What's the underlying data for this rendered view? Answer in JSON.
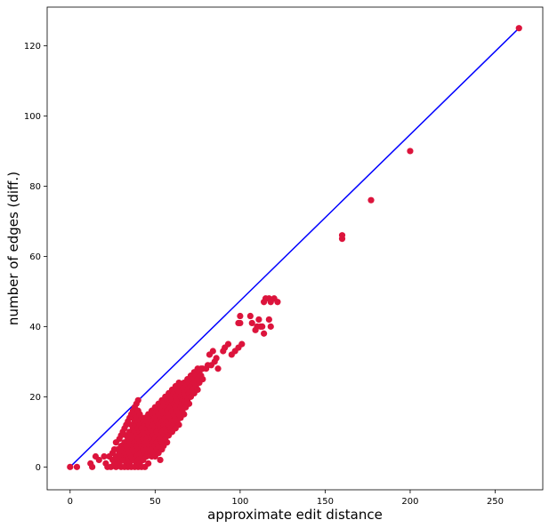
{
  "chart_data": {
    "type": "scatter",
    "title": "",
    "xlabel": "approximate edit distance",
    "ylabel": "number of edges (diff.)",
    "xlim": [
      -13.5,
      278
    ],
    "ylim": [
      -6.5,
      131
    ],
    "grid": false,
    "x_ticks": [
      0,
      50,
      100,
      150,
      200,
      250
    ],
    "y_ticks": [
      0,
      20,
      40,
      60,
      80,
      100,
      120
    ],
    "x_tick_labels": [
      "0",
      "50",
      "100",
      "150",
      "200",
      "250"
    ],
    "y_tick_labels": [
      "0",
      "20",
      "40",
      "60",
      "80",
      "100",
      "120"
    ],
    "colors": {
      "points": "#dc143c",
      "line": "#0000ff"
    },
    "line": {
      "x": [
        0,
        264
      ],
      "y": [
        0,
        125
      ]
    },
    "series": [
      {
        "points": [
          [
            0,
            0
          ],
          [
            4,
            0
          ],
          [
            12,
            1
          ],
          [
            13,
            0
          ],
          [
            15,
            3
          ],
          [
            17,
            2
          ],
          [
            20,
            3
          ],
          [
            21,
            1
          ],
          [
            22,
            0
          ],
          [
            23,
            3
          ],
          [
            24,
            0
          ],
          [
            25,
            2
          ],
          [
            25,
            4
          ],
          [
            26,
            1
          ],
          [
            26,
            5
          ],
          [
            27,
            0
          ],
          [
            27,
            3
          ],
          [
            27,
            7
          ],
          [
            28,
            2
          ],
          [
            28,
            5
          ],
          [
            29,
            1
          ],
          [
            29,
            4
          ],
          [
            29,
            8
          ],
          [
            30,
            0
          ],
          [
            30,
            3
          ],
          [
            30,
            6
          ],
          [
            30,
            9
          ],
          [
            31,
            2
          ],
          [
            31,
            5
          ],
          [
            31,
            10
          ],
          [
            32,
            0
          ],
          [
            32,
            4
          ],
          [
            32,
            7
          ],
          [
            32,
            11
          ],
          [
            33,
            1
          ],
          [
            33,
            3
          ],
          [
            33,
            6
          ],
          [
            33,
            9
          ],
          [
            33,
            12
          ],
          [
            34,
            0
          ],
          [
            34,
            2
          ],
          [
            34,
            5
          ],
          [
            34,
            8
          ],
          [
            34,
            13
          ],
          [
            35,
            1
          ],
          [
            35,
            4
          ],
          [
            35,
            7
          ],
          [
            35,
            10
          ],
          [
            35,
            14
          ],
          [
            36,
            0
          ],
          [
            36,
            3
          ],
          [
            36,
            6
          ],
          [
            36,
            9
          ],
          [
            36,
            12
          ],
          [
            36,
            15
          ],
          [
            37,
            2
          ],
          [
            37,
            5
          ],
          [
            37,
            8
          ],
          [
            37,
            11
          ],
          [
            37,
            14
          ],
          [
            37,
            16
          ],
          [
            38,
            0
          ],
          [
            38,
            4
          ],
          [
            38,
            7
          ],
          [
            38,
            10
          ],
          [
            38,
            13
          ],
          [
            38,
            15
          ],
          [
            38,
            17
          ],
          [
            39,
            1
          ],
          [
            39,
            3
          ],
          [
            39,
            6
          ],
          [
            39,
            9
          ],
          [
            39,
            12
          ],
          [
            39,
            14
          ],
          [
            39,
            18
          ],
          [
            40,
            0
          ],
          [
            40,
            2
          ],
          [
            40,
            5
          ],
          [
            40,
            8
          ],
          [
            40,
            11
          ],
          [
            40,
            13
          ],
          [
            40,
            16
          ],
          [
            40,
            19
          ],
          [
            41,
            1
          ],
          [
            41,
            4
          ],
          [
            41,
            7
          ],
          [
            41,
            10
          ],
          [
            41,
            12
          ],
          [
            41,
            15
          ],
          [
            42,
            0
          ],
          [
            42,
            3
          ],
          [
            42,
            6
          ],
          [
            42,
            9
          ],
          [
            42,
            11
          ],
          [
            42,
            14
          ],
          [
            43,
            2
          ],
          [
            43,
            5
          ],
          [
            43,
            8
          ],
          [
            43,
            10
          ],
          [
            43,
            13
          ],
          [
            44,
            0
          ],
          [
            44,
            4
          ],
          [
            44,
            7
          ],
          [
            44,
            9
          ],
          [
            44,
            12
          ],
          [
            44,
            14
          ],
          [
            45,
            3
          ],
          [
            45,
            6
          ],
          [
            45,
            8
          ],
          [
            45,
            11
          ],
          [
            45,
            13
          ],
          [
            46,
            1
          ],
          [
            46,
            5
          ],
          [
            46,
            7
          ],
          [
            46,
            10
          ],
          [
            46,
            12
          ],
          [
            46,
            15
          ],
          [
            47,
            4
          ],
          [
            47,
            6
          ],
          [
            47,
            9
          ],
          [
            47,
            11
          ],
          [
            47,
            14
          ],
          [
            48,
            3
          ],
          [
            48,
            5
          ],
          [
            48,
            8
          ],
          [
            48,
            10
          ],
          [
            48,
            13
          ],
          [
            48,
            16
          ],
          [
            49,
            4
          ],
          [
            49,
            7
          ],
          [
            49,
            9
          ],
          [
            49,
            12
          ],
          [
            49,
            15
          ],
          [
            50,
            3
          ],
          [
            50,
            6
          ],
          [
            50,
            8
          ],
          [
            50,
            11
          ],
          [
            50,
            14
          ],
          [
            50,
            17
          ],
          [
            51,
            5
          ],
          [
            51,
            7
          ],
          [
            51,
            10
          ],
          [
            51,
            13
          ],
          [
            51,
            16
          ],
          [
            52,
            4
          ],
          [
            52,
            6
          ],
          [
            52,
            9
          ],
          [
            52,
            12
          ],
          [
            52,
            15
          ],
          [
            52,
            18
          ],
          [
            53,
            2
          ],
          [
            53,
            8
          ],
          [
            53,
            11
          ],
          [
            53,
            14
          ],
          [
            53,
            17
          ],
          [
            54,
            5
          ],
          [
            54,
            7
          ],
          [
            54,
            10
          ],
          [
            54,
            13
          ],
          [
            54,
            16
          ],
          [
            54,
            19
          ],
          [
            55,
            6
          ],
          [
            55,
            9
          ],
          [
            55,
            12
          ],
          [
            55,
            15
          ],
          [
            55,
            18
          ],
          [
            56,
            8
          ],
          [
            56,
            11
          ],
          [
            56,
            14
          ],
          [
            56,
            17
          ],
          [
            56,
            20
          ],
          [
            57,
            7
          ],
          [
            57,
            10
          ],
          [
            57,
            13
          ],
          [
            57,
            16
          ],
          [
            57,
            19
          ],
          [
            58,
            9
          ],
          [
            58,
            12
          ],
          [
            58,
            15
          ],
          [
            58,
            18
          ],
          [
            58,
            21
          ],
          [
            59,
            11
          ],
          [
            59,
            14
          ],
          [
            59,
            17
          ],
          [
            59,
            20
          ],
          [
            60,
            10
          ],
          [
            60,
            13
          ],
          [
            60,
            16
          ],
          [
            60,
            19
          ],
          [
            60,
            22
          ],
          [
            61,
            12
          ],
          [
            61,
            15
          ],
          [
            61,
            18
          ],
          [
            61,
            21
          ],
          [
            62,
            11
          ],
          [
            62,
            14
          ],
          [
            62,
            17
          ],
          [
            62,
            20
          ],
          [
            62,
            23
          ],
          [
            63,
            13
          ],
          [
            63,
            16
          ],
          [
            63,
            19
          ],
          [
            63,
            22
          ],
          [
            64,
            12
          ],
          [
            64,
            15
          ],
          [
            64,
            18
          ],
          [
            64,
            21
          ],
          [
            64,
            24
          ],
          [
            65,
            14
          ],
          [
            65,
            17
          ],
          [
            65,
            20
          ],
          [
            65,
            23
          ],
          [
            66,
            16
          ],
          [
            66,
            19
          ],
          [
            66,
            22
          ],
          [
            67,
            15
          ],
          [
            67,
            18
          ],
          [
            67,
            21
          ],
          [
            67,
            24
          ],
          [
            68,
            17
          ],
          [
            68,
            20
          ],
          [
            68,
            23
          ],
          [
            69,
            19
          ],
          [
            69,
            22
          ],
          [
            69,
            25
          ],
          [
            70,
            18
          ],
          [
            70,
            21
          ],
          [
            70,
            24
          ],
          [
            71,
            20
          ],
          [
            71,
            23
          ],
          [
            71,
            26
          ],
          [
            72,
            22
          ],
          [
            72,
            25
          ],
          [
            73,
            21
          ],
          [
            73,
            24
          ],
          [
            73,
            27
          ],
          [
            74,
            23
          ],
          [
            74,
            26
          ],
          [
            75,
            22
          ],
          [
            75,
            25
          ],
          [
            75,
            28
          ],
          [
            76,
            24
          ],
          [
            76,
            27
          ],
          [
            77,
            26
          ],
          [
            77,
            28
          ],
          [
            78,
            25
          ],
          [
            78,
            28
          ],
          [
            80,
            28
          ],
          [
            81,
            29
          ],
          [
            82,
            32
          ],
          [
            83,
            29
          ],
          [
            84,
            33
          ],
          [
            85,
            30
          ],
          [
            86,
            31
          ],
          [
            87,
            28
          ],
          [
            90,
            33
          ],
          [
            91,
            34
          ],
          [
            93,
            35
          ],
          [
            95,
            32
          ],
          [
            97,
            33
          ],
          [
            99,
            34
          ],
          [
            101,
            35
          ],
          [
            99,
            41
          ],
          [
            100,
            43
          ],
          [
            100,
            41
          ],
          [
            106,
            43
          ],
          [
            107,
            41
          ],
          [
            109,
            39
          ],
          [
            110,
            40
          ],
          [
            111,
            42
          ],
          [
            112,
            40
          ],
          [
            113,
            40
          ],
          [
            114,
            38
          ],
          [
            117,
            42
          ],
          [
            118,
            40
          ],
          [
            114,
            47
          ],
          [
            115,
            48
          ],
          [
            117,
            48
          ],
          [
            118,
            47
          ],
          [
            120,
            48
          ],
          [
            122,
            47
          ],
          [
            160,
            66
          ],
          [
            160,
            65
          ],
          [
            177,
            76
          ],
          [
            200,
            90
          ],
          [
            264,
            125
          ]
        ]
      }
    ]
  }
}
